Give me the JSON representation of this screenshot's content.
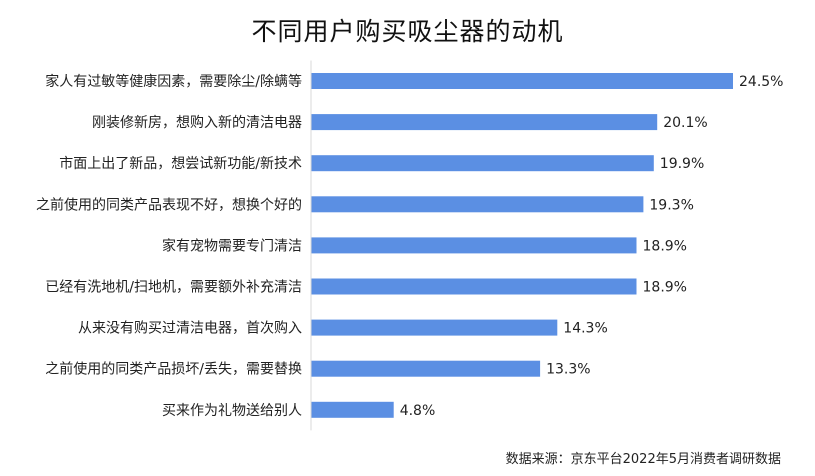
{
  "chart_data": {
    "type": "bar",
    "orientation": "horizontal",
    "title": "不同用户购买吸尘器的动机",
    "categories": [
      "家人有过敏等健康因素，需要除尘/除螨等",
      "刚装修新房，想购入新的清洁电器",
      "市面上出了新品，想尝试新功能/新技术",
      "之前使用的同类产品表现不好，想换个好的",
      "家有宠物需要专门清洁",
      "已经有洗地机/扫地机，需要额外补充清洁",
      "从来没有购买过清洁电器，首次购入",
      "之前使用的同类产品损坏/丢失，需要替换",
      "买来作为礼物送给别人"
    ],
    "values": [
      24.5,
      20.1,
      19.9,
      19.3,
      18.9,
      18.9,
      14.3,
      13.3,
      4.8
    ],
    "value_labels": [
      "24.5%",
      "20.1%",
      "19.9%",
      "19.3%",
      "18.9%",
      "18.9%",
      "14.3%",
      "13.3%",
      "4.8%"
    ],
    "unit": "%",
    "xlim": [
      0,
      25
    ],
    "grid": false,
    "legend": "none",
    "bar_color": "#5B8FE3"
  },
  "source": "数据来源：京东平台2022年5月消费者调研数据"
}
